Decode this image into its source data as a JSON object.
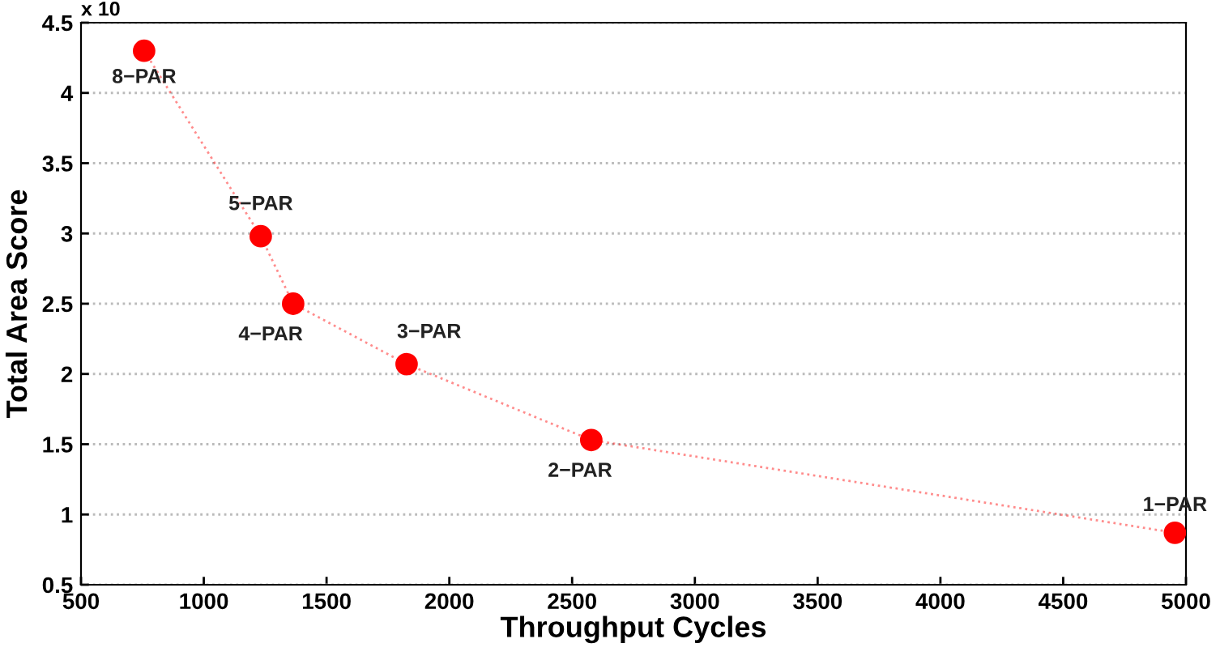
{
  "chart_data": {
    "type": "scatter",
    "xlabel": "Throughput Cycles",
    "ylabel": "Total Area Score",
    "x": [
      757,
      1232,
      1364,
      1826,
      2578,
      4955
    ],
    "series": [
      {
        "color": "#ff0000",
        "values": [
          4.3,
          2.98,
          2.5,
          2.07,
          1.53,
          0.87
        ]
      }
    ],
    "line_style": "dotted",
    "marker": "circle",
    "grid": "y",
    "xlim": [
      500,
      5000
    ],
    "xticks": [
      500,
      1000,
      1500,
      2000,
      2500,
      3000,
      3500,
      4000,
      4500,
      5000
    ],
    "ylim": [
      0.5,
      4.5
    ],
    "yticks": [
      0.5,
      1,
      1.5,
      2,
      2.5,
      3,
      3.5,
      4,
      4.5
    ],
    "annotations": [
      "x 10",
      {
        "text": "8−PAR",
        "x": 757,
        "y": 4.3
      },
      {
        "text": "5−PAR",
        "x": 1232,
        "y": 2.98
      },
      {
        "text": "4−PAR",
        "x": 1364,
        "y": 2.5
      },
      {
        "text": "3−PAR",
        "x": 1826,
        "y": 2.07
      },
      {
        "text": "2−PAR",
        "x": 2578,
        "y": 1.53
      },
      {
        "text": "1−PAR",
        "x": 4955,
        "y": 0.87
      }
    ]
  }
}
